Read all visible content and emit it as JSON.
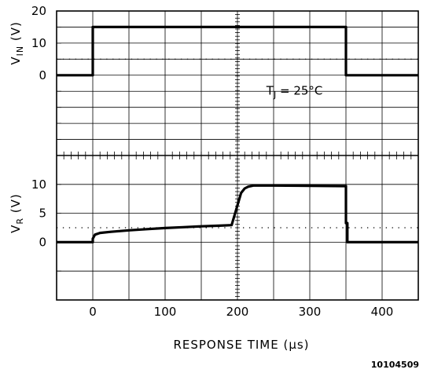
{
  "chart_data": {
    "type": "line",
    "x_axis": {
      "label": "RESPONSE TIME (µs)",
      "range": [
        -50,
        450
      ],
      "ticks": [
        0,
        100,
        200,
        300,
        400
      ],
      "minor_step": 10
    },
    "panels": [
      {
        "id": "vin",
        "ylabel_main": "V",
        "ylabel_sub": "IN",
        "ylabel_unit": " (V)",
        "range": [
          -25,
          20
        ],
        "ticks": [
          0,
          10,
          20
        ],
        "grid_step": 5,
        "reference_level": 5,
        "series": [
          {
            "x": [
              -50,
              0,
              0,
              350,
              350,
              450
            ],
            "y": [
              0,
              0,
              15,
              15,
              0,
              0
            ]
          }
        ],
        "annotation": {
          "main": "T",
          "sub": "J",
          "rest": " = 25°C",
          "x": 240,
          "y": -6
        }
      },
      {
        "id": "vr",
        "ylabel_main": "V",
        "ylabel_sub": "R",
        "ylabel_unit": " (V)",
        "range": [
          -10,
          15
        ],
        "ticks": [
          0,
          5,
          10
        ],
        "grid_step": 5,
        "reference_level": 2.5,
        "series": [
          {
            "x": [
              -50,
              0,
              0,
              3,
              10,
              25,
              50,
              75,
              100,
              125,
              150,
              175,
              192,
              205,
              210,
              215,
              222,
              232,
              250,
              350,
              350,
              352,
              352,
              450
            ],
            "y": [
              0,
              0,
              0.6,
              1.3,
              1.6,
              1.8,
              2.05,
              2.25,
              2.45,
              2.6,
              2.75,
              2.85,
              2.95,
              8.5,
              9.3,
              9.6,
              9.8,
              9.8,
              9.8,
              9.7,
              3.3,
              3.3,
              0,
              0
            ]
          }
        ]
      }
    ],
    "figure_id": "10104509"
  }
}
